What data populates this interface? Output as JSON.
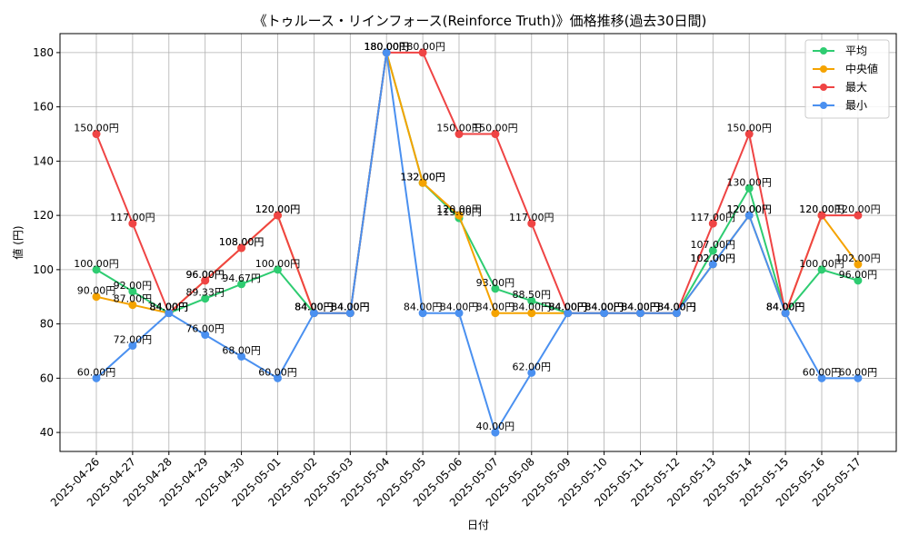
{
  "chart_data": {
    "type": "line",
    "title": "《トゥルース・リインフォース(Reinforce Truth)》価格推移(過去30日間)",
    "xlabel": "日付",
    "ylabel": "値 (円)",
    "ylim": [
      33,
      187
    ],
    "yticks": [
      40,
      60,
      80,
      100,
      120,
      140,
      160,
      180
    ],
    "grid": true,
    "legend_position": "top-right",
    "label_suffix": "円",
    "categories": [
      "2025-04-26",
      "2025-04-27",
      "2025-04-28",
      "2025-04-29",
      "2025-04-30",
      "2025-05-01",
      "2025-05-02",
      "2025-05-03",
      "2025-05-04",
      "2025-05-05",
      "2025-05-06",
      "2025-05-07",
      "2025-05-08",
      "2025-05-09",
      "2025-05-10",
      "2025-05-11",
      "2025-05-12",
      "2025-05-13",
      "2025-05-14",
      "2025-05-15",
      "2025-05-16",
      "2025-05-17"
    ],
    "series": [
      {
        "name": "平均",
        "color": "#2ecc71",
        "values": [
          100.0,
          92.0,
          84.0,
          89.33,
          94.67,
          100.0,
          84.0,
          84.0,
          180.0,
          132.0,
          119.0,
          93.0,
          88.5,
          84.0,
          84.0,
          84.0,
          84.0,
          107.0,
          130.0,
          84.0,
          100.0,
          96.0
        ]
      },
      {
        "name": "中央値",
        "color": "#f5a300",
        "values": [
          90.0,
          87.0,
          84.0,
          96.0,
          108.0,
          120.0,
          84.0,
          84.0,
          180.0,
          132.0,
          120.0,
          84.0,
          84.0,
          84.0,
          84.0,
          84.0,
          84.0,
          102.0,
          120.0,
          84.0,
          120.0,
          102.0
        ]
      },
      {
        "name": "最大",
        "color": "#ef4444",
        "values": [
          150.0,
          117.0,
          84.0,
          96.0,
          108.0,
          120.0,
          84.0,
          84.0,
          180.0,
          180.0,
          150.0,
          150.0,
          117.0,
          84.0,
          84.0,
          84.0,
          84.0,
          117.0,
          150.0,
          84.0,
          120.0,
          120.0
        ]
      },
      {
        "name": "最小",
        "color": "#4a90f0",
        "values": [
          60.0,
          72.0,
          84.0,
          76.0,
          68.0,
          60.0,
          84.0,
          84.0,
          180.0,
          84.0,
          84.0,
          40.0,
          62.0,
          84.0,
          84.0,
          84.0,
          84.0,
          102.0,
          120.0,
          84.0,
          60.0,
          60.0
        ]
      }
    ]
  }
}
